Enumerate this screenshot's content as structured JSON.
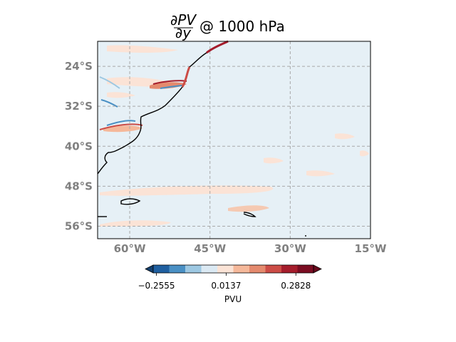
{
  "title": {
    "fraction_num": "∂PV",
    "fraction_den": "∂y",
    "suffix": "@ 1000 hPa"
  },
  "map": {
    "lat_range": [
      -58.5,
      -19
    ],
    "lon_range": [
      -66,
      -15
    ],
    "ocean_color": "#e6f0f6",
    "coast_color": "#000000",
    "grid_style": "dashed",
    "lat_ticks": [
      {
        "value": -24,
        "label": "24°S"
      },
      {
        "value": -32,
        "label": "32°S"
      },
      {
        "value": -40,
        "label": "40°S"
      },
      {
        "value": -48,
        "label": "48°S"
      },
      {
        "value": -56,
        "label": "56°S"
      }
    ],
    "lon_ticks": [
      {
        "value": -60,
        "label": "60°W"
      },
      {
        "value": -45,
        "label": "45°W"
      },
      {
        "value": -30,
        "label": "30°W"
      },
      {
        "value": -15,
        "label": "15°W"
      }
    ]
  },
  "colorbar": {
    "colors": [
      "#1f5fa0",
      "#4a90c4",
      "#9dc8e2",
      "#dbe9f3",
      "#fbe3d6",
      "#f5b89a",
      "#e48a6e",
      "#cc4c46",
      "#a51d2c",
      "#7b0d22"
    ],
    "under_color": "#14406f",
    "over_color": "#670a1c",
    "ticks": [
      {
        "frac": 0.02,
        "label": "−0.2555"
      },
      {
        "frac": 0.455,
        "label": "0.0137"
      },
      {
        "frac": 0.89,
        "label": "0.2828"
      }
    ],
    "label": "PVU"
  }
}
